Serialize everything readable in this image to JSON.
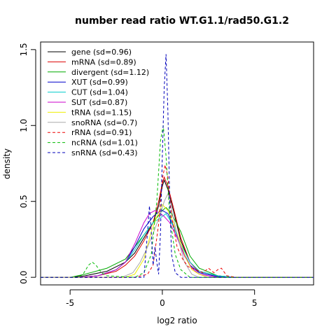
{
  "chart_data": {
    "type": "line",
    "title": "number read ratio WT.G1.1/rad50.G1.2",
    "xlabel": "log2 ratio",
    "ylabel": "density",
    "xlim": [
      -6.6,
      8.2
    ],
    "ylim": [
      -0.05,
      1.55
    ],
    "xticks": [
      -5,
      0,
      5
    ],
    "yticks": [
      0.0,
      0.5,
      1.0,
      1.5
    ],
    "xtick_labels": [
      "-5",
      "0",
      "5"
    ],
    "ytick_labels": [
      "0.0",
      "0.5",
      "1.0",
      "1.5"
    ],
    "grid": false,
    "legend_position": "top-left",
    "series": [
      {
        "name": "gene (sd=0.96)",
        "color": "#000000",
        "dash": "solid",
        "points": [
          [
            -6.6,
            0
          ],
          [
            -5.0,
            0
          ],
          [
            -4.2,
            0.01
          ],
          [
            -3.0,
            0.04
          ],
          [
            -2.0,
            0.1
          ],
          [
            -1.5,
            0.16
          ],
          [
            -1.0,
            0.26
          ],
          [
            -0.5,
            0.36
          ],
          [
            -0.2,
            0.47
          ],
          [
            0.0,
            0.6
          ],
          [
            0.1,
            0.64
          ],
          [
            0.3,
            0.58
          ],
          [
            0.6,
            0.44
          ],
          [
            1.0,
            0.24
          ],
          [
            1.5,
            0.1
          ],
          [
            2.0,
            0.04
          ],
          [
            3.0,
            0.01
          ],
          [
            4.0,
            0
          ],
          [
            8.2,
            0
          ]
        ]
      },
      {
        "name": "mRNA (sd=0.89)",
        "color": "#dd0000",
        "dash": "solid",
        "points": [
          [
            -6.6,
            0
          ],
          [
            -4.5,
            0
          ],
          [
            -3.5,
            0.01
          ],
          [
            -2.5,
            0.04
          ],
          [
            -2.0,
            0.08
          ],
          [
            -1.5,
            0.14
          ],
          [
            -1.0,
            0.24
          ],
          [
            -0.5,
            0.36
          ],
          [
            -0.2,
            0.5
          ],
          [
            0.0,
            0.62
          ],
          [
            0.1,
            0.66
          ],
          [
            0.3,
            0.6
          ],
          [
            0.6,
            0.46
          ],
          [
            1.0,
            0.26
          ],
          [
            1.5,
            0.1
          ],
          [
            2.0,
            0.03
          ],
          [
            3.0,
            0.005
          ],
          [
            4.0,
            0
          ],
          [
            8.2,
            0
          ]
        ]
      },
      {
        "name": "divergent (sd=1.12)",
        "color": "#00aa00",
        "dash": "solid",
        "points": [
          [
            -6.6,
            0
          ],
          [
            -5.0,
            0
          ],
          [
            -4.2,
            0.02
          ],
          [
            -3.0,
            0.06
          ],
          [
            -2.0,
            0.12
          ],
          [
            -1.5,
            0.2
          ],
          [
            -1.0,
            0.28
          ],
          [
            -0.5,
            0.36
          ],
          [
            0.0,
            0.44
          ],
          [
            0.2,
            0.46
          ],
          [
            0.5,
            0.42
          ],
          [
            1.0,
            0.3
          ],
          [
            1.5,
            0.14
          ],
          [
            2.0,
            0.06
          ],
          [
            3.0,
            0.01
          ],
          [
            4.0,
            0
          ],
          [
            8.2,
            0
          ]
        ]
      },
      {
        "name": "XUT (sd=0.99)",
        "color": "#0000cc",
        "dash": "solid",
        "points": [
          [
            -6.6,
            0
          ],
          [
            -4.5,
            0
          ],
          [
            -3.5,
            0.01
          ],
          [
            -2.5,
            0.05
          ],
          [
            -2.0,
            0.1
          ],
          [
            -1.5,
            0.2
          ],
          [
            -1.0,
            0.32
          ],
          [
            -0.5,
            0.4
          ],
          [
            -0.2,
            0.43
          ],
          [
            0.0,
            0.44
          ],
          [
            0.3,
            0.42
          ],
          [
            0.6,
            0.34
          ],
          [
            1.0,
            0.2
          ],
          [
            1.5,
            0.08
          ],
          [
            2.0,
            0.03
          ],
          [
            3.0,
            0.005
          ],
          [
            4.0,
            0
          ],
          [
            8.2,
            0
          ]
        ]
      },
      {
        "name": "CUT (sd=1.04)",
        "color": "#00cccc",
        "dash": "solid",
        "points": [
          [
            -6.6,
            0
          ],
          [
            -4.5,
            0
          ],
          [
            -3.5,
            0.01
          ],
          [
            -2.5,
            0.05
          ],
          [
            -2.0,
            0.1
          ],
          [
            -1.5,
            0.18
          ],
          [
            -1.0,
            0.28
          ],
          [
            -0.5,
            0.36
          ],
          [
            0.0,
            0.4
          ],
          [
            0.2,
            0.42
          ],
          [
            0.5,
            0.36
          ],
          [
            1.0,
            0.22
          ],
          [
            1.5,
            0.1
          ],
          [
            2.0,
            0.04
          ],
          [
            3.0,
            0.01
          ],
          [
            4.0,
            0
          ],
          [
            8.2,
            0
          ]
        ]
      },
      {
        "name": "SUT (sd=0.87)",
        "color": "#cc00cc",
        "dash": "solid",
        "points": [
          [
            -6.6,
            0
          ],
          [
            -4.5,
            0
          ],
          [
            -3.5,
            0.01
          ],
          [
            -2.5,
            0.05
          ],
          [
            -2.0,
            0.1
          ],
          [
            -1.5,
            0.22
          ],
          [
            -1.0,
            0.36
          ],
          [
            -0.7,
            0.42
          ],
          [
            -0.4,
            0.44
          ],
          [
            -0.1,
            0.42
          ],
          [
            0.1,
            0.4
          ],
          [
            0.4,
            0.36
          ],
          [
            0.8,
            0.26
          ],
          [
            1.2,
            0.14
          ],
          [
            1.6,
            0.06
          ],
          [
            2.0,
            0.02
          ],
          [
            3.0,
            0
          ],
          [
            8.2,
            0
          ]
        ]
      },
      {
        "name": "tRNA (sd=1.15)",
        "color": "#eeee00",
        "dash": "solid",
        "points": [
          [
            -6.6,
            0
          ],
          [
            -2.0,
            0
          ],
          [
            -1.5,
            0.02
          ],
          [
            -1.0,
            0.12
          ],
          [
            -0.6,
            0.3
          ],
          [
            -0.3,
            0.4
          ],
          [
            0.0,
            0.48
          ],
          [
            0.3,
            0.44
          ],
          [
            0.6,
            0.36
          ],
          [
            1.0,
            0.22
          ],
          [
            1.3,
            0.12
          ],
          [
            1.6,
            0.05
          ],
          [
            2.0,
            0.02
          ],
          [
            2.5,
            0
          ],
          [
            8.2,
            0
          ]
        ]
      },
      {
        "name": "snoRNA (sd=0.7)",
        "color": "#aaaaaa",
        "dash": "solid",
        "points": [
          [
            -6.6,
            0
          ],
          [
            -2.2,
            0
          ],
          [
            -1.6,
            0.03
          ],
          [
            -1.2,
            0.1
          ],
          [
            -0.8,
            0.2
          ],
          [
            -0.4,
            0.32
          ],
          [
            -0.1,
            0.42
          ],
          [
            0.1,
            0.5
          ],
          [
            0.3,
            0.55
          ],
          [
            0.5,
            0.45
          ],
          [
            0.8,
            0.28
          ],
          [
            1.2,
            0.1
          ],
          [
            1.6,
            0.02
          ],
          [
            2.0,
            0
          ],
          [
            8.2,
            0
          ]
        ]
      },
      {
        "name": "rRNA (sd=0.91)",
        "color": "#ee0000",
        "dash": "dashed",
        "points": [
          [
            -6.6,
            0
          ],
          [
            -1.5,
            0
          ],
          [
            -0.8,
            0.02
          ],
          [
            -0.5,
            0.08
          ],
          [
            -0.2,
            0.35
          ],
          [
            0.0,
            0.65
          ],
          [
            0.15,
            0.74
          ],
          [
            0.3,
            0.66
          ],
          [
            0.5,
            0.4
          ],
          [
            0.8,
            0.2
          ],
          [
            1.1,
            0.12
          ],
          [
            1.4,
            0.07
          ],
          [
            1.8,
            0.05
          ],
          [
            2.2,
            0.03
          ],
          [
            2.5,
            0.06
          ],
          [
            2.8,
            0.03
          ],
          [
            3.0,
            0.05
          ],
          [
            3.2,
            0.06
          ],
          [
            3.5,
            0.01
          ],
          [
            4.0,
            0
          ],
          [
            8.2,
            0
          ]
        ]
      },
      {
        "name": "ncRNA (sd=1.01)",
        "color": "#00bb00",
        "dash": "dashed",
        "points": [
          [
            -6.6,
            0
          ],
          [
            -4.6,
            0
          ],
          [
            -4.3,
            0.02
          ],
          [
            -4.0,
            0.08
          ],
          [
            -3.8,
            0.1
          ],
          [
            -3.6,
            0.08
          ],
          [
            -3.3,
            0.03
          ],
          [
            -3.0,
            0.01
          ],
          [
            -1.5,
            0
          ],
          [
            -1.0,
            0.03
          ],
          [
            -0.6,
            0.15
          ],
          [
            -0.3,
            0.5
          ],
          [
            -0.1,
            0.9
          ],
          [
            0.05,
            1.0
          ],
          [
            0.2,
            0.8
          ],
          [
            0.4,
            0.4
          ],
          [
            0.7,
            0.15
          ],
          [
            1.0,
            0.05
          ],
          [
            1.5,
            0
          ],
          [
            8.2,
            0
          ]
        ]
      },
      {
        "name": "snRNA (sd=0.43)",
        "color": "#0000bb",
        "dash": "dashed",
        "points": [
          [
            -6.6,
            0
          ],
          [
            -1.0,
            0
          ],
          [
            -0.8,
            0.3
          ],
          [
            -0.7,
            0.47
          ],
          [
            -0.6,
            0.3
          ],
          [
            -0.5,
            0.08
          ],
          [
            -0.4,
            0.2
          ],
          [
            -0.3,
            0.1
          ],
          [
            -0.2,
            0.02
          ],
          [
            -0.1,
            0.3
          ],
          [
            0.0,
            0.8
          ],
          [
            0.1,
            1.25
          ],
          [
            0.2,
            1.47
          ],
          [
            0.3,
            1.1
          ],
          [
            0.4,
            0.5
          ],
          [
            0.5,
            0.15
          ],
          [
            0.7,
            0.03
          ],
          [
            1.0,
            0
          ],
          [
            8.2,
            0
          ]
        ]
      }
    ]
  }
}
